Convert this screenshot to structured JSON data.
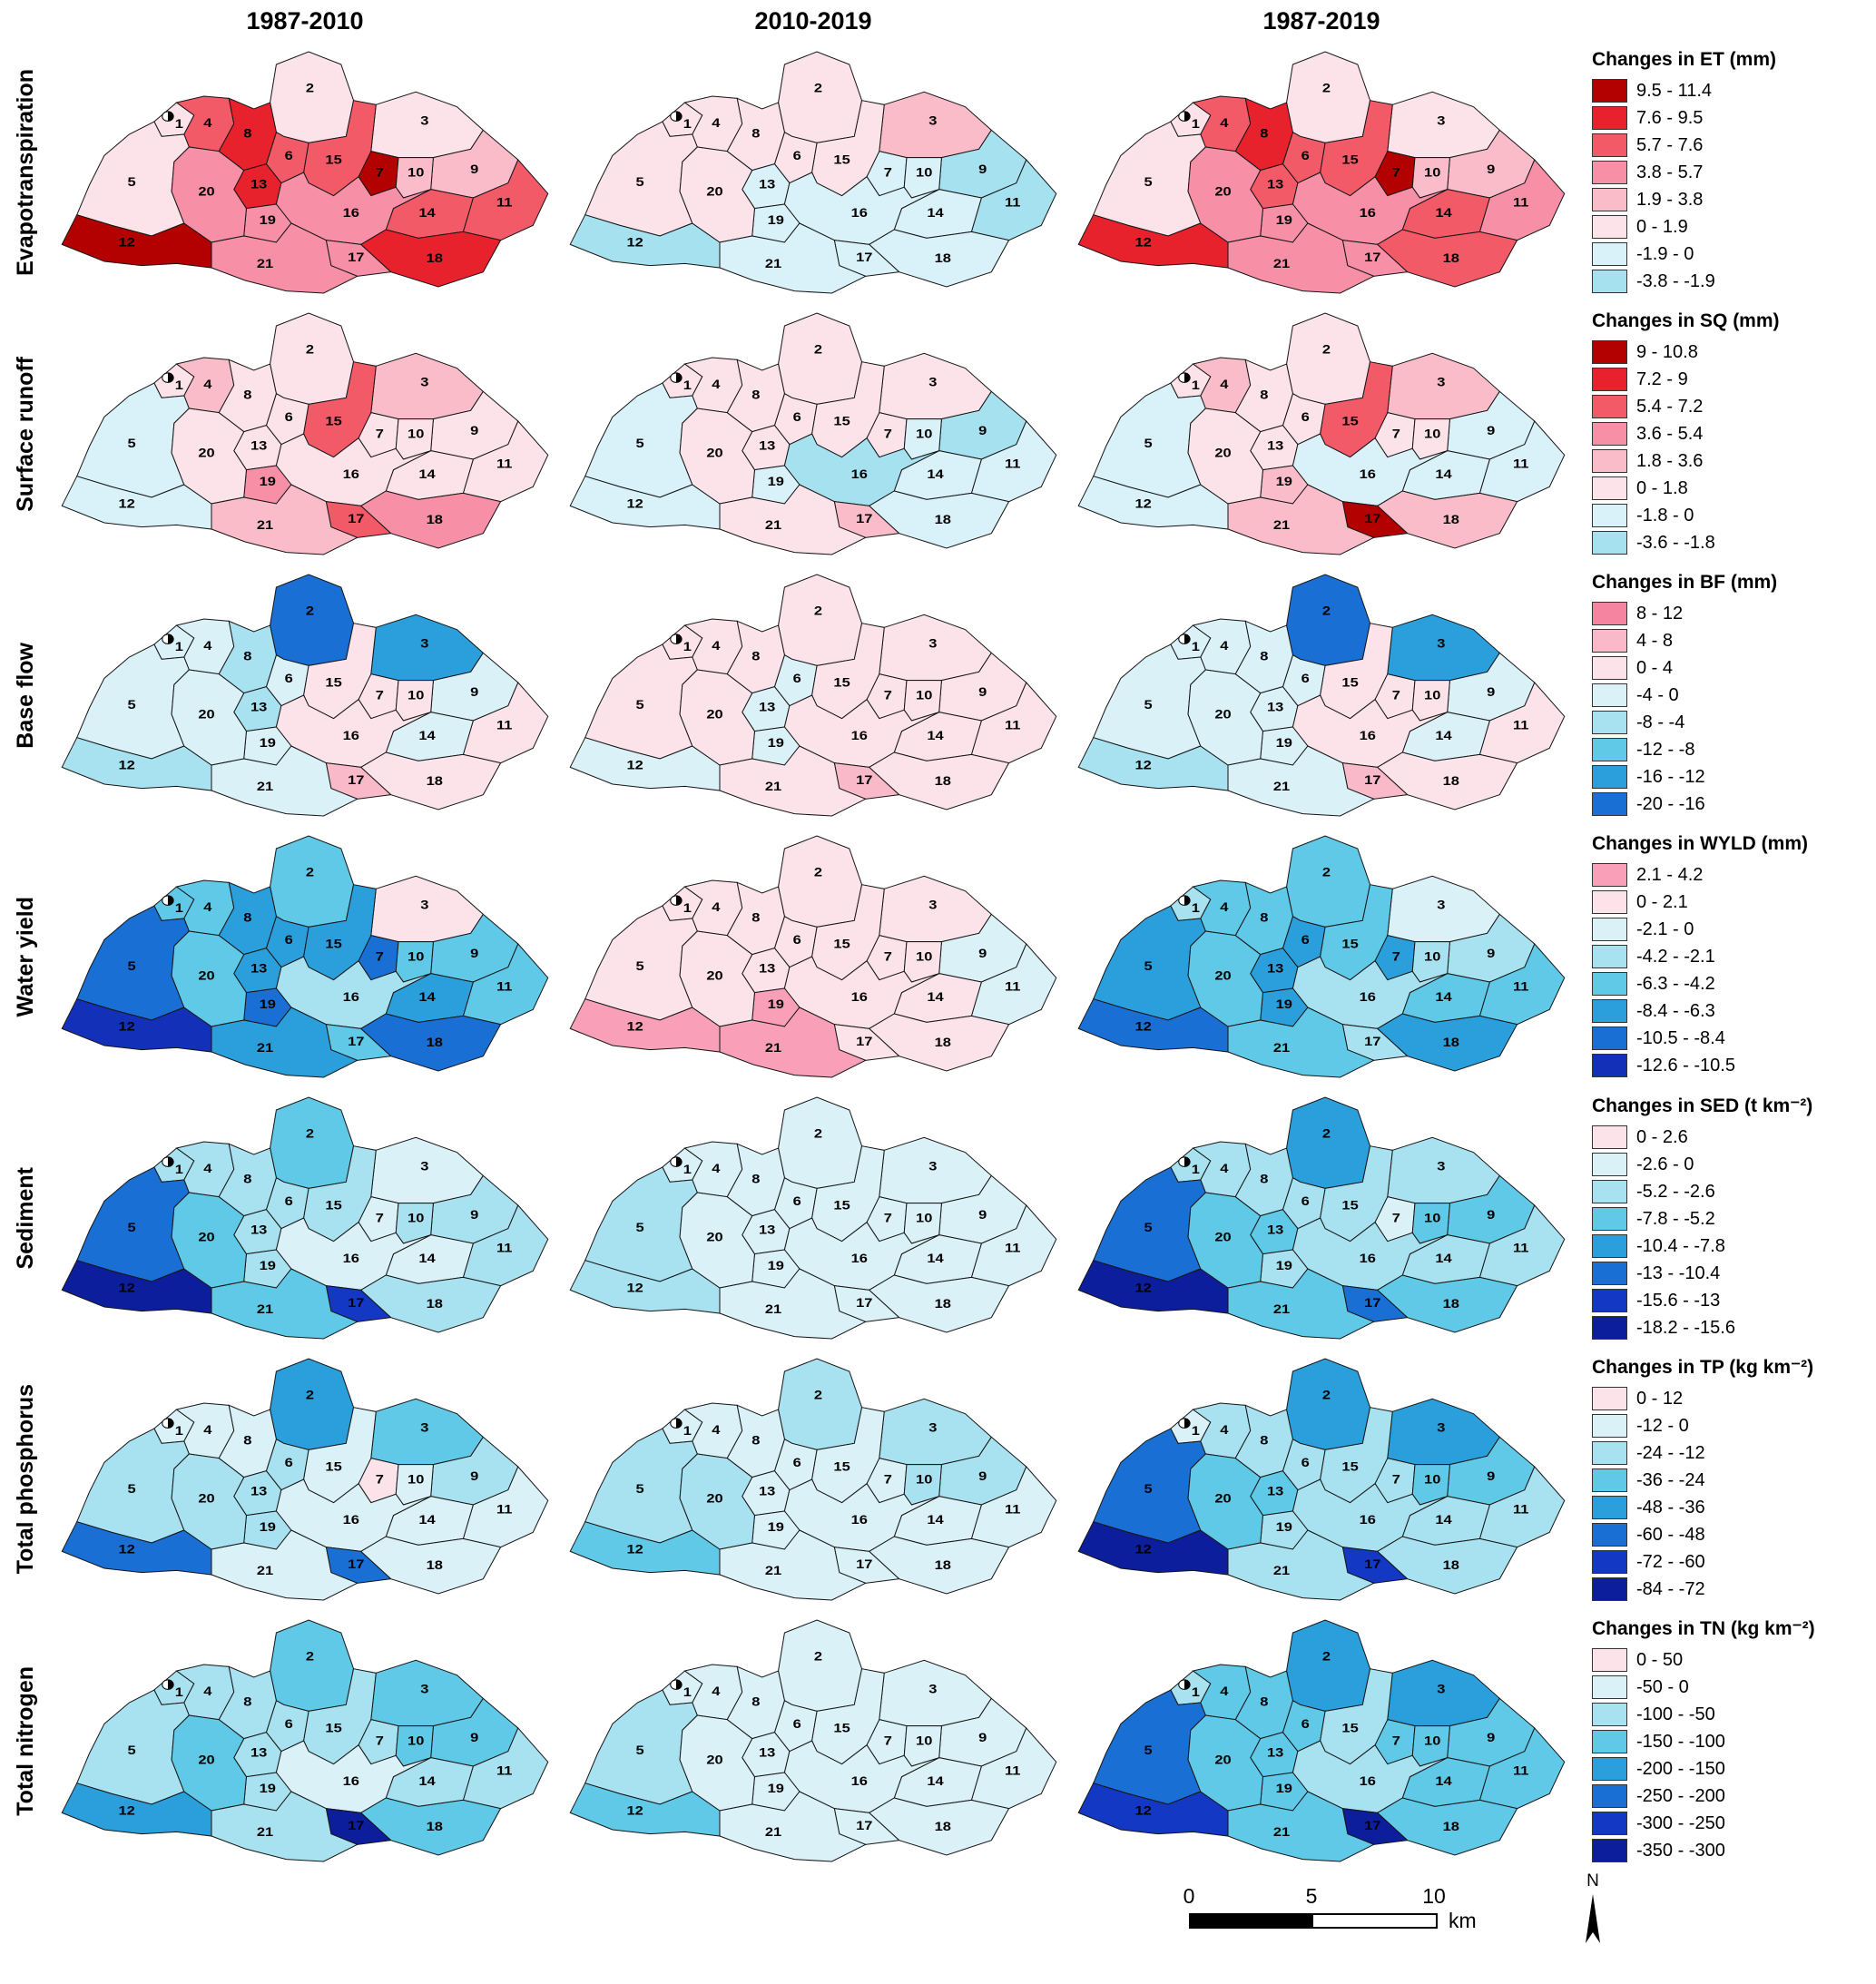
{
  "columns": [
    "1987-2010",
    "2010-2019",
    "1987-2019"
  ],
  "subbasin_ids": [
    1,
    2,
    3,
    4,
    5,
    6,
    7,
    8,
    9,
    10,
    11,
    12,
    13,
    14,
    15,
    16,
    17,
    18,
    19,
    20,
    21
  ],
  "icons": {
    "gauge_station": "half-filled-circle",
    "north_arrow": "compass-needle"
  },
  "scalebar": {
    "ticks": [
      "0",
      "5",
      "10"
    ],
    "unit": "km"
  },
  "north_label": "N",
  "rows": [
    {
      "label": "Evapotranspiration",
      "legend_title": "Changes in ET (mm)",
      "classes": [
        {
          "label": "9.5 - 11.4",
          "color": "#b30000"
        },
        {
          "label": "7.6 - 9.5",
          "color": "#e8222d"
        },
        {
          "label": "5.7 - 7.6",
          "color": "#f25a68"
        },
        {
          "label": "3.8 - 5.7",
          "color": "#f78fa7"
        },
        {
          "label": "1.9 - 3.8",
          "color": "#fbbcca"
        },
        {
          "label": "0 - 1.9",
          "color": "#fce3ea"
        },
        {
          "label": "-1.9 - 0",
          "color": "#d9f1f8"
        },
        {
          "label": "-3.8 - -1.9",
          "color": "#a5e1ef"
        }
      ],
      "maps": [
        [
          5,
          5,
          5,
          2,
          5,
          2,
          0,
          1,
          4,
          4,
          2,
          0,
          1,
          2,
          2,
          3,
          3,
          1,
          3,
          3,
          3
        ],
        [
          5,
          5,
          4,
          5,
          5,
          5,
          6,
          5,
          7,
          6,
          7,
          7,
          6,
          6,
          5,
          6,
          6,
          6,
          6,
          5,
          6
        ],
        [
          5,
          5,
          5,
          2,
          5,
          2,
          0,
          1,
          4,
          4,
          3,
          1,
          2,
          2,
          2,
          3,
          3,
          2,
          3,
          3,
          3
        ]
      ]
    },
    {
      "label": "Surface runoff",
      "legend_title": "Changes in SQ (mm)",
      "classes": [
        {
          "label": "9 - 10.8",
          "color": "#b30000"
        },
        {
          "label": "7.2 - 9",
          "color": "#e8222d"
        },
        {
          "label": "5.4 - 7.2",
          "color": "#f25a68"
        },
        {
          "label": "3.6 - 5.4",
          "color": "#f78fa7"
        },
        {
          "label": "1.8 - 3.6",
          "color": "#fbbcca"
        },
        {
          "label": "0 - 1.8",
          "color": "#fce3ea"
        },
        {
          "label": "-1.8 - 0",
          "color": "#d9f1f8"
        },
        {
          "label": "-3.6 - -1.8",
          "color": "#a5e1ef"
        }
      ],
      "maps": [
        [
          5,
          5,
          4,
          4,
          6,
          5,
          5,
          5,
          5,
          5,
          5,
          6,
          5,
          5,
          2,
          5,
          2,
          3,
          3,
          5,
          4
        ],
        [
          5,
          5,
          5,
          5,
          6,
          5,
          5,
          5,
          7,
          6,
          6,
          6,
          5,
          6,
          5,
          7,
          4,
          6,
          6,
          5,
          5
        ],
        [
          5,
          5,
          4,
          4,
          6,
          5,
          5,
          5,
          6,
          5,
          6,
          6,
          5,
          6,
          2,
          6,
          0,
          4,
          4,
          5,
          4
        ]
      ]
    },
    {
      "label": "Base flow",
      "legend_title": "Changes in BF (mm)",
      "classes": [
        {
          "label": "8 - 12",
          "color": "#f4849f"
        },
        {
          "label": "4 - 8",
          "color": "#f9b9c9"
        },
        {
          "label": "0 - 4",
          "color": "#fce3ea"
        },
        {
          "label": "-4 - 0",
          "color": "#daf1f8"
        },
        {
          "label": "-8 - -4",
          "color": "#a8e2f0"
        },
        {
          "label": "-12 - -8",
          "color": "#5fc9e7"
        },
        {
          "label": "-16 - -12",
          "color": "#2b9fdc"
        },
        {
          "label": "-20 - -16",
          "color": "#1a6fd4"
        }
      ],
      "maps": [
        [
          3,
          7,
          6,
          3,
          3,
          3,
          2,
          4,
          3,
          2,
          2,
          4,
          4,
          3,
          2,
          2,
          1,
          2,
          3,
          3,
          3
        ],
        [
          2,
          2,
          2,
          2,
          2,
          3,
          2,
          2,
          2,
          2,
          2,
          3,
          3,
          2,
          2,
          2,
          1,
          2,
          3,
          2,
          2
        ],
        [
          3,
          7,
          6,
          3,
          3,
          3,
          2,
          3,
          3,
          2,
          2,
          4,
          3,
          3,
          2,
          2,
          1,
          2,
          3,
          3,
          3
        ]
      ]
    },
    {
      "label": "Water yield",
      "legend_title": "Changes in WYLD (mm)",
      "classes": [
        {
          "label": "2.1 - 4.2",
          "color": "#f9a0b8"
        },
        {
          "label": "0 - 2.1",
          "color": "#fce3ea"
        },
        {
          "label": "-2.1 - 0",
          "color": "#daf1f8"
        },
        {
          "label": "-4.2 - -2.1",
          "color": "#a8e2f0"
        },
        {
          "label": "-6.3 - -4.2",
          "color": "#5fc9e7"
        },
        {
          "label": "-8.4 - -6.3",
          "color": "#2b9fdc"
        },
        {
          "label": "-10.5 - -8.4",
          "color": "#1a6fd4"
        },
        {
          "label": "-12.6 - -10.5",
          "color": "#1330b8"
        }
      ],
      "maps": [
        [
          4,
          4,
          1,
          4,
          6,
          5,
          6,
          5,
          4,
          4,
          4,
          7,
          5,
          5,
          5,
          3,
          4,
          6,
          6,
          4,
          5
        ],
        [
          1,
          1,
          1,
          1,
          1,
          1,
          1,
          1,
          2,
          1,
          2,
          0,
          1,
          1,
          1,
          1,
          1,
          1,
          0,
          1,
          0
        ],
        [
          3,
          4,
          2,
          4,
          5,
          5,
          5,
          4,
          3,
          3,
          4,
          6,
          5,
          4,
          4,
          3,
          3,
          5,
          5,
          4,
          4
        ]
      ]
    },
    {
      "label": "Sediment",
      "legend_title": "Changes in SED (t km⁻²)",
      "classes": [
        {
          "label": "0 - 2.6",
          "color": "#fce3ea"
        },
        {
          "label": "-2.6 - 0",
          "color": "#daf1f8"
        },
        {
          "label": "-5.2 - -2.6",
          "color": "#a8e2f0"
        },
        {
          "label": "-7.8 - -5.2",
          "color": "#5fc9e7"
        },
        {
          "label": "-10.4 - -7.8",
          "color": "#2b9fdc"
        },
        {
          "label": "-13 - -10.4",
          "color": "#1a6fd4"
        },
        {
          "label": "-15.6 - -13",
          "color": "#1238c4"
        },
        {
          "label": "-18.2 - -15.6",
          "color": "#0c1e9c"
        }
      ],
      "maps": [
        [
          2,
          3,
          1,
          2,
          5,
          2,
          1,
          2,
          2,
          2,
          2,
          7,
          2,
          1,
          2,
          1,
          6,
          2,
          2,
          3,
          3
        ],
        [
          1,
          1,
          1,
          1,
          2,
          1,
          1,
          1,
          1,
          1,
          1,
          2,
          1,
          1,
          1,
          1,
          1,
          1,
          1,
          1,
          1
        ],
        [
          2,
          4,
          2,
          2,
          5,
          2,
          1,
          2,
          3,
          3,
          2,
          7,
          3,
          2,
          2,
          2,
          5,
          3,
          2,
          3,
          3
        ]
      ]
    },
    {
      "label": "Total phosphorus",
      "legend_title": "Changes in TP (kg km⁻²)",
      "classes": [
        {
          "label": "0 - 12",
          "color": "#fce3ea"
        },
        {
          "label": "-12 - 0",
          "color": "#daf1f8"
        },
        {
          "label": "-24 - -12",
          "color": "#a8e2f0"
        },
        {
          "label": "-36 - -24",
          "color": "#5fc9e7"
        },
        {
          "label": "-48 - -36",
          "color": "#2b9fdc"
        },
        {
          "label": "-60 - -48",
          "color": "#1a6fd4"
        },
        {
          "label": "-72 - -60",
          "color": "#1238c4"
        },
        {
          "label": "-84 - -72",
          "color": "#0c1e9c"
        }
      ],
      "maps": [
        [
          1,
          4,
          3,
          1,
          2,
          2,
          0,
          1,
          2,
          1,
          1,
          5,
          2,
          1,
          1,
          1,
          5,
          1,
          2,
          2,
          1
        ],
        [
          1,
          2,
          2,
          1,
          2,
          1,
          1,
          1,
          2,
          2,
          1,
          3,
          1,
          1,
          1,
          1,
          1,
          1,
          1,
          2,
          1
        ],
        [
          1,
          4,
          4,
          2,
          5,
          2,
          2,
          2,
          3,
          3,
          2,
          7,
          3,
          2,
          2,
          2,
          6,
          2,
          2,
          3,
          2
        ]
      ]
    },
    {
      "label": "Total nitrogen",
      "legend_title": "Changes in TN (kg km⁻²)",
      "classes": [
        {
          "label": "0 - 50",
          "color": "#fce3ea"
        },
        {
          "label": "-50 - 0",
          "color": "#daf1f8"
        },
        {
          "label": "-100 - -50",
          "color": "#a8e2f0"
        },
        {
          "label": "-150 - -100",
          "color": "#5fc9e7"
        },
        {
          "label": "-200 - -150",
          "color": "#2b9fdc"
        },
        {
          "label": "-250 - -200",
          "color": "#1a6fd4"
        },
        {
          "label": "-300 - -250",
          "color": "#1238c4"
        },
        {
          "label": "-350 - -300",
          "color": "#0c1e9c"
        }
      ],
      "maps": [
        [
          2,
          3,
          3,
          2,
          2,
          2,
          2,
          2,
          3,
          3,
          2,
          4,
          2,
          2,
          2,
          1,
          7,
          3,
          2,
          3,
          2
        ],
        [
          1,
          1,
          1,
          1,
          2,
          1,
          1,
          1,
          1,
          1,
          1,
          3,
          1,
          1,
          1,
          1,
          1,
          1,
          1,
          1,
          1
        ],
        [
          2,
          4,
          4,
          3,
          5,
          3,
          3,
          3,
          3,
          3,
          3,
          6,
          3,
          3,
          2,
          2,
          7,
          3,
          3,
          3,
          3
        ]
      ]
    }
  ]
}
